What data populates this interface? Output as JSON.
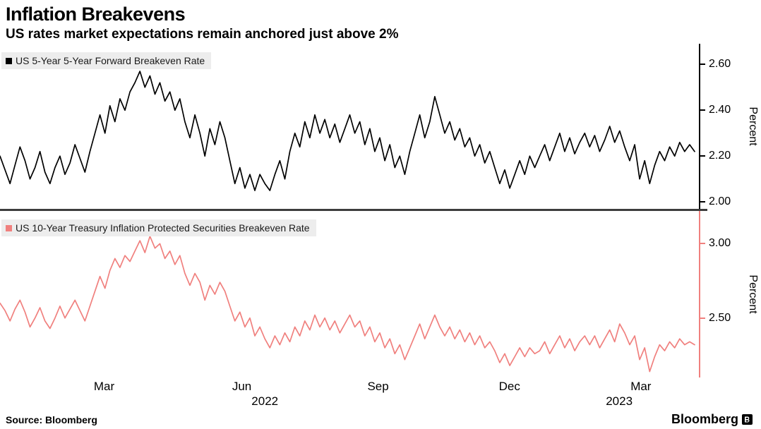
{
  "header": {
    "title": "Inflation Breakevens",
    "subtitle": "US rates market expectations remain anchored just above 2%"
  },
  "footer": {
    "source_label": "Source: Bloomberg",
    "brand": "Bloomberg"
  },
  "x_axis": {
    "ticks": [
      {
        "label": "Mar",
        "pos": 0.149
      },
      {
        "label": "Jun",
        "pos": 0.346
      },
      {
        "label": "Sep",
        "pos": 0.541
      },
      {
        "label": "Dec",
        "pos": 0.729
      },
      {
        "label": "Mar",
        "pos": 0.917
      }
    ],
    "years": [
      {
        "label": "2022",
        "pos": 0.379
      },
      {
        "label": "2023",
        "pos": 0.886
      }
    ]
  },
  "chart_data": [
    {
      "type": "line",
      "name": "US 5-Year 5-Year Forward Breakeven Rate",
      "color": "#000000",
      "ylabel": "Percent",
      "ylim": [
        1.97,
        2.69
      ],
      "yticks": [
        2.0,
        2.2,
        2.4,
        2.6
      ],
      "x_start": "Jan 2022",
      "x_end": "Apr 2023",
      "values": [
        2.2,
        2.14,
        2.08,
        2.16,
        2.24,
        2.18,
        2.1,
        2.15,
        2.22,
        2.13,
        2.08,
        2.15,
        2.2,
        2.12,
        2.17,
        2.25,
        2.19,
        2.13,
        2.22,
        2.3,
        2.38,
        2.3,
        2.42,
        2.35,
        2.45,
        2.4,
        2.48,
        2.52,
        2.57,
        2.5,
        2.55,
        2.47,
        2.52,
        2.44,
        2.48,
        2.4,
        2.45,
        2.35,
        2.28,
        2.38,
        2.3,
        2.2,
        2.32,
        2.25,
        2.35,
        2.28,
        2.18,
        2.08,
        2.15,
        2.06,
        2.12,
        2.05,
        2.12,
        2.08,
        2.05,
        2.12,
        2.18,
        2.1,
        2.22,
        2.3,
        2.24,
        2.35,
        2.28,
        2.38,
        2.3,
        2.36,
        2.28,
        2.34,
        2.26,
        2.32,
        2.38,
        2.3,
        2.35,
        2.25,
        2.32,
        2.22,
        2.28,
        2.18,
        2.25,
        2.15,
        2.2,
        2.12,
        2.22,
        2.3,
        2.38,
        2.28,
        2.35,
        2.46,
        2.38,
        2.3,
        2.35,
        2.27,
        2.32,
        2.24,
        2.28,
        2.2,
        2.25,
        2.17,
        2.22,
        2.15,
        2.08,
        2.14,
        2.06,
        2.12,
        2.18,
        2.12,
        2.2,
        2.15,
        2.2,
        2.25,
        2.18,
        2.24,
        2.3,
        2.22,
        2.28,
        2.21,
        2.26,
        2.3,
        2.24,
        2.29,
        2.22,
        2.27,
        2.33,
        2.26,
        2.31,
        2.24,
        2.18,
        2.25,
        2.1,
        2.18,
        2.08,
        2.16,
        2.22,
        2.18,
        2.24,
        2.2,
        2.26,
        2.22,
        2.25,
        2.22
      ]
    },
    {
      "type": "line",
      "name": "US 10-Year Treasury Inflation Protected Securities Breakeven Rate",
      "color": "#f0807e",
      "ylabel": "Percent",
      "ylim": [
        2.1,
        3.22
      ],
      "yticks": [
        2.5,
        3.0
      ],
      "x_start": "Jan 2022",
      "x_end": "Apr 2023",
      "values": [
        2.6,
        2.55,
        2.48,
        2.56,
        2.62,
        2.54,
        2.44,
        2.5,
        2.57,
        2.48,
        2.43,
        2.5,
        2.58,
        2.5,
        2.56,
        2.62,
        2.55,
        2.48,
        2.58,
        2.68,
        2.78,
        2.7,
        2.82,
        2.9,
        2.84,
        2.92,
        2.88,
        2.95,
        3.02,
        2.94,
        3.05,
        2.97,
        3.0,
        2.9,
        2.95,
        2.86,
        2.92,
        2.8,
        2.72,
        2.8,
        2.74,
        2.62,
        2.72,
        2.66,
        2.74,
        2.68,
        2.58,
        2.48,
        2.54,
        2.44,
        2.5,
        2.38,
        2.44,
        2.36,
        2.3,
        2.38,
        2.32,
        2.4,
        2.34,
        2.44,
        2.38,
        2.48,
        2.42,
        2.52,
        2.44,
        2.5,
        2.42,
        2.48,
        2.4,
        2.46,
        2.52,
        2.44,
        2.48,
        2.38,
        2.44,
        2.34,
        2.4,
        2.3,
        2.36,
        2.26,
        2.32,
        2.22,
        2.3,
        2.38,
        2.46,
        2.36,
        2.44,
        2.52,
        2.44,
        2.38,
        2.44,
        2.36,
        2.42,
        2.34,
        2.4,
        2.32,
        2.38,
        2.3,
        2.34,
        2.28,
        2.2,
        2.26,
        2.18,
        2.24,
        2.3,
        2.24,
        2.3,
        2.26,
        2.28,
        2.34,
        2.26,
        2.32,
        2.38,
        2.3,
        2.36,
        2.28,
        2.34,
        2.38,
        2.32,
        2.38,
        2.3,
        2.36,
        2.42,
        2.34,
        2.46,
        2.4,
        2.32,
        2.38,
        2.22,
        2.3,
        2.14,
        2.24,
        2.32,
        2.28,
        2.34,
        2.3,
        2.36,
        2.32,
        2.34,
        2.32
      ]
    }
  ]
}
